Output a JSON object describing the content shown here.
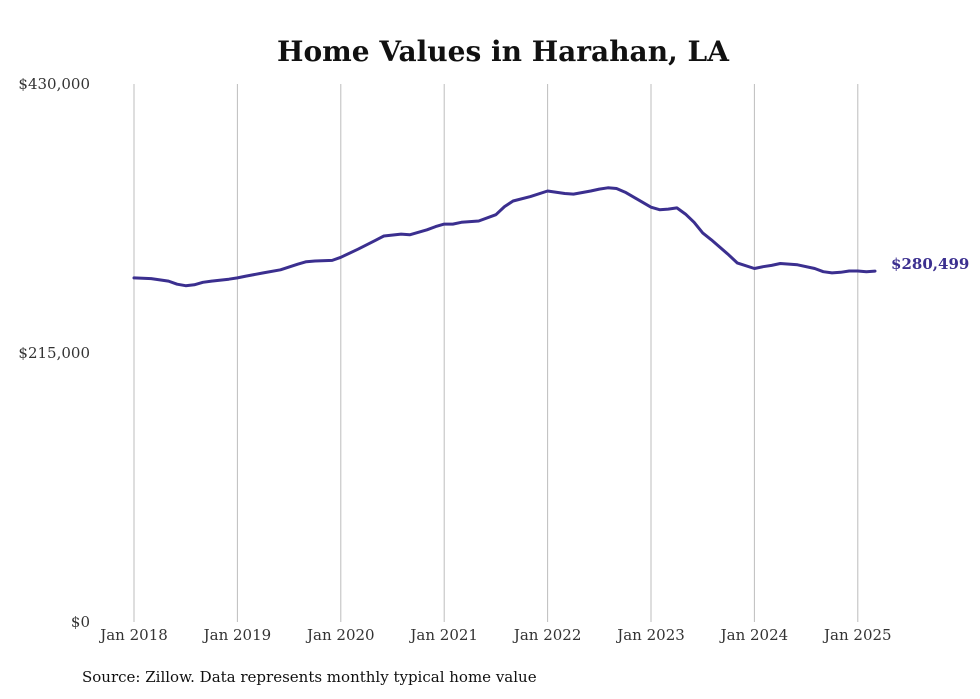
{
  "chart_data": {
    "type": "line",
    "title": "Home Values in Harahan, LA",
    "xlabel": "",
    "ylabel": "",
    "ylim": [
      0,
      430000
    ],
    "y_ticks": [
      {
        "value": 0,
        "label": "$0"
      },
      {
        "value": 215000,
        "label": "$215,000"
      },
      {
        "value": 430000,
        "label": "$430,000"
      }
    ],
    "x_ticks": [
      {
        "value": "2018-01",
        "label": "Jan 2018"
      },
      {
        "value": "2019-01",
        "label": "Jan 2019"
      },
      {
        "value": "2020-01",
        "label": "Jan 2020"
      },
      {
        "value": "2021-01",
        "label": "Jan 2021"
      },
      {
        "value": "2022-01",
        "label": "Jan 2022"
      },
      {
        "value": "2023-01",
        "label": "Jan 2023"
      },
      {
        "value": "2024-01",
        "label": "Jan 2024"
      },
      {
        "value": "2025-01",
        "label": "Jan 2025"
      }
    ],
    "grid": {
      "vertical": true,
      "horizontal": false
    },
    "line_color": "#3b2f8f",
    "end_label": "$280,499",
    "series": [
      {
        "points": [
          [
            "2018-01",
            275000
          ],
          [
            "2018-03",
            274500
          ],
          [
            "2018-05",
            272500
          ],
          [
            "2018-06",
            270000
          ],
          [
            "2018-07",
            268800
          ],
          [
            "2018-08",
            269500
          ],
          [
            "2018-09",
            271500
          ],
          [
            "2018-10",
            272500
          ],
          [
            "2018-12",
            274000
          ],
          [
            "2019-01",
            275000
          ],
          [
            "2019-02",
            276500
          ],
          [
            "2019-04",
            279000
          ],
          [
            "2019-06",
            281500
          ],
          [
            "2019-08",
            286000
          ],
          [
            "2019-09",
            288000
          ],
          [
            "2019-10",
            288500
          ],
          [
            "2019-12",
            289000
          ],
          [
            "2020-01",
            291500
          ],
          [
            "2020-03",
            298000
          ],
          [
            "2020-05",
            305000
          ],
          [
            "2020-06",
            308500
          ],
          [
            "2020-08",
            310000
          ],
          [
            "2020-09",
            309500
          ],
          [
            "2020-11",
            313500
          ],
          [
            "2020-12",
            316000
          ],
          [
            "2021-01",
            318000
          ],
          [
            "2021-02",
            318000
          ],
          [
            "2021-03",
            319500
          ],
          [
            "2021-05",
            320500
          ],
          [
            "2021-07",
            325500
          ],
          [
            "2021-08",
            332000
          ],
          [
            "2021-09",
            336500
          ],
          [
            "2021-11",
            340000
          ],
          [
            "2022-01",
            344500
          ],
          [
            "2022-03",
            342500
          ],
          [
            "2022-04",
            342000
          ],
          [
            "2022-06",
            344500
          ],
          [
            "2022-07",
            346000
          ],
          [
            "2022-08",
            347000
          ],
          [
            "2022-09",
            346500
          ],
          [
            "2022-10",
            343500
          ],
          [
            "2022-11",
            339500
          ],
          [
            "2023-01",
            331500
          ],
          [
            "2023-02",
            329500
          ],
          [
            "2023-03",
            330000
          ],
          [
            "2023-04",
            331000
          ],
          [
            "2023-05",
            326000
          ],
          [
            "2023-06",
            319500
          ],
          [
            "2023-07",
            311000
          ],
          [
            "2023-08",
            305500
          ],
          [
            "2023-10",
            293500
          ],
          [
            "2023-11",
            287000
          ],
          [
            "2024-01",
            282500
          ],
          [
            "2024-02",
            284000
          ],
          [
            "2024-03",
            285000
          ],
          [
            "2024-04",
            286500
          ],
          [
            "2024-06",
            285500
          ],
          [
            "2024-08",
            282500
          ],
          [
            "2024-09",
            280000
          ],
          [
            "2024-10",
            279000
          ],
          [
            "2024-11",
            279500
          ],
          [
            "2024-12",
            280500
          ],
          [
            "2025-01",
            280500
          ],
          [
            "2025-02",
            280000
          ],
          [
            "2025-03",
            280499
          ]
        ]
      }
    ]
  },
  "source_note": "Source: Zillow. Data represents monthly typical home value"
}
